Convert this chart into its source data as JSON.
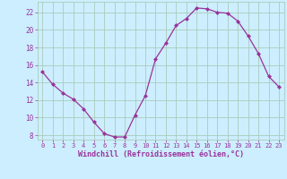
{
  "x": [
    0,
    1,
    2,
    3,
    4,
    5,
    6,
    7,
    8,
    9,
    10,
    11,
    12,
    13,
    14,
    15,
    16,
    17,
    18,
    19,
    20,
    21,
    22,
    23
  ],
  "y": [
    15.2,
    13.8,
    12.8,
    12.1,
    11.0,
    9.5,
    8.2,
    7.8,
    7.8,
    10.3,
    12.5,
    16.7,
    18.5,
    20.5,
    21.3,
    22.5,
    22.4,
    22.0,
    21.9,
    21.0,
    19.3,
    17.3,
    14.7,
    13.5
  ],
  "line_color": "#993399",
  "marker": "D",
  "marker_size": 2,
  "bg_color": "#cceeff",
  "grid_color": "#aaccbb",
  "xlabel": "Windchill (Refroidissement éolien,°C)",
  "xlabel_color": "#993399",
  "tick_color": "#993399",
  "yticks": [
    8,
    10,
    12,
    14,
    16,
    18,
    20,
    22
  ],
  "xticks": [
    0,
    1,
    2,
    3,
    4,
    5,
    6,
    7,
    8,
    9,
    10,
    11,
    12,
    13,
    14,
    15,
    16,
    17,
    18,
    19,
    20,
    21,
    22,
    23
  ],
  "ylim": [
    7.5,
    23.2
  ],
  "xlim": [
    -0.5,
    23.5
  ]
}
